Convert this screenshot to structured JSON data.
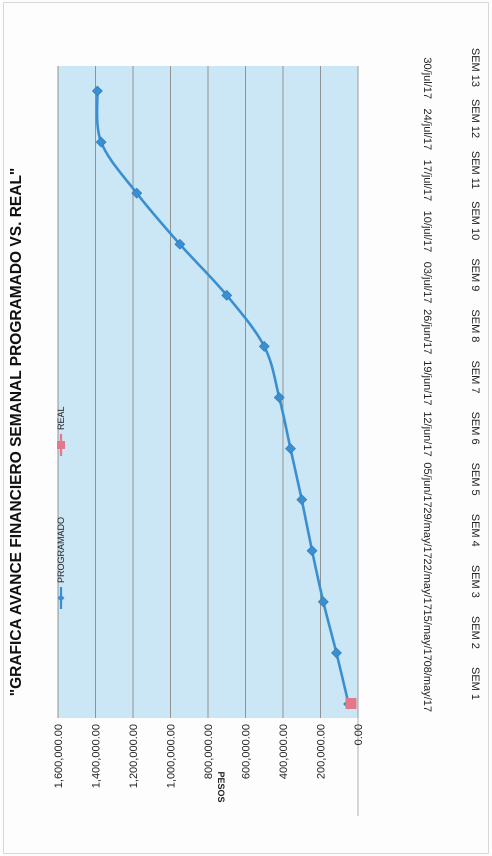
{
  "chart_data": {
    "type": "line",
    "title": "\"GRAFICA AVANCE FINANCIERO  SEMANAL PROGRAMADO VS. REAL\"",
    "ylabel": "PESOS",
    "xlabel": "",
    "ylim": [
      0,
      1600000
    ],
    "ytick_labels": [
      "0.00",
      "200,000.00",
      "400,000.00",
      "600,000.00",
      "800,000.00",
      "1,000,000.00",
      "1,200,000.00",
      "1,400,000.00",
      "1,600,000.00"
    ],
    "categories": [
      [
        "SEM 1",
        "08/may/17"
      ],
      [
        "SEM 2",
        "15/may/17"
      ],
      [
        "SEM 3",
        "22/may/17"
      ],
      [
        "SEM 4",
        "29/may/17"
      ],
      [
        "SEM 5",
        "05/jun/17"
      ],
      [
        "SEM 6",
        "12/jun/17"
      ],
      [
        "SEM 7",
        "19/jun/17"
      ],
      [
        "SEM 8",
        "26/jun/17"
      ],
      [
        "SEM 9",
        "03/jul/17"
      ],
      [
        "SEM 10",
        "10/jul/17"
      ],
      [
        "SEM 11",
        "17/jul/17"
      ],
      [
        "SEM 12",
        "24/jul/17"
      ],
      [
        "SEM 13",
        "30/jul/17"
      ]
    ],
    "series": [
      {
        "name": "PROGRAMADO",
        "color": "#3a8fd0",
        "marker": "diamond",
        "values": [
          50000,
          115000,
          185000,
          245000,
          300000,
          360000,
          420000,
          500000,
          700000,
          950000,
          1180000,
          1370000,
          1390000
        ]
      },
      {
        "name": "REAL",
        "color": "#e07a8a",
        "marker": "square",
        "values": [
          40000,
          null,
          null,
          null,
          null,
          null,
          null,
          null,
          null,
          null,
          null,
          null,
          null
        ]
      }
    ],
    "grid": true,
    "legend_position": "left",
    "colors": {
      "plot_background": "#cbe6f5",
      "gridline": "#8a8a8a",
      "programado": "#3a8fd0",
      "real": "#e07a8a"
    }
  }
}
